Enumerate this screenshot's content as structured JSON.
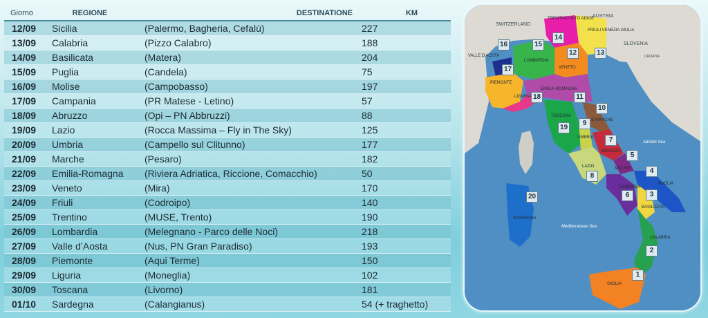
{
  "table": {
    "headers": {
      "day": "Giorno",
      "region": "REGIONE",
      "destination": "DESTINATIONE",
      "km": "KM"
    },
    "rows": [
      {
        "day": "12/09",
        "region": "Sicilia",
        "destination": "(Palermo, Bagheria, Cefalù)",
        "km": "227"
      },
      {
        "day": "13/09",
        "region": "Calabria",
        "destination": "(Pizzo Calabro)",
        "km": "188"
      },
      {
        "day": "14/09",
        "region": "Basilicata",
        "destination": "(Matera)",
        "km": "204"
      },
      {
        "day": "15/09",
        "region": "Puglia",
        "destination": "(Candela)",
        "km": "75"
      },
      {
        "day": "16/09",
        "region": "Molise",
        "destination": "(Campobasso)",
        "km": "197"
      },
      {
        "day": "17/09",
        "region": "Campania",
        "destination": "(PR Matese - Letino)",
        "km": "57"
      },
      {
        "day": "18/09",
        "region": "Abruzzo",
        "destination": "(Opi – PN Abbruzzi)",
        "km": "88"
      },
      {
        "day": "19/09",
        "region": "Lazio",
        "destination": "(Rocca Massima – Fly in The Sky)",
        "km": "125"
      },
      {
        "day": "20/09",
        "region": "Umbria",
        "destination": "(Campello sul Clitunno)",
        "km": "177"
      },
      {
        "day": "21/09",
        "region": "Marche",
        "destination": "(Pesaro)",
        "km": "182"
      },
      {
        "day": "22/09",
        "region": "Emilia-Romagna",
        "destination": "(Riviera Adriatica, Riccione, Comacchio)",
        "km": "50"
      },
      {
        "day": "23/09",
        "region": "Veneto",
        "destination": "(Mira)",
        "km": "170"
      },
      {
        "day": "24/09",
        "region": "Friuli",
        "destination": "(Codroipo)",
        "km": "140"
      },
      {
        "day": "25/09",
        "region": "Trentino",
        "destination": "(MUSE, Trento)",
        "km": "190"
      },
      {
        "day": "26/09",
        "region": "Lombardia",
        "destination": "(Melegnano - Parco delle Noci)",
        "km": "218"
      },
      {
        "day": "27/09",
        "region": "Valle d’Aosta",
        "destination": "(Nus, PN Gran Paradiso)",
        "km": "193"
      },
      {
        "day": "28/09",
        "region": "Piemonte",
        "destination": "(Aqui Terme)",
        "km": "150"
      },
      {
        "day": "29/09",
        "region": "Liguria",
        "destination": "(Moneglia)",
        "km": "102"
      },
      {
        "day": "30/09",
        "region": "Toscana",
        "destination": "(Livorno)",
        "km": "181"
      },
      {
        "day": "01/10",
        "region": "Sardegna",
        "destination": "(Calangianus)",
        "km": "54 (+ traghetto)"
      }
    ]
  },
  "map": {
    "countries": {
      "switzerland": "SWITZERLAND",
      "austria": "AUSTRIA",
      "slovenia": "SLOVENIA",
      "croatia": "CROATIA"
    },
    "seas": {
      "adriatic": "Adriatic Sea",
      "mediterranean": "Mediterranean Sea"
    },
    "regions": {
      "trentino": "TRENTINO ALTO ADIGE",
      "friuli": "FRIULI VENEZIA GIULIA",
      "valle": "VALLE D'AOSTA",
      "lombardia": "LOMBARDIA",
      "veneto": "VENETO",
      "piemonte": "PIEMONTE",
      "emilia": "EMILIA-ROMAGNA",
      "liguria": "LIGURIA",
      "toscana": "TOSCANA",
      "marche": "LE MARCHE",
      "umbria": "UMBRIA",
      "abruzzo": "ABRUZZO",
      "lazio": "LAZIO",
      "molise": "MOLISE",
      "puglia": "PUGLIA",
      "campania": "CAMPANIA",
      "basilicata": "BASILICATA",
      "sardegna": "SARDEGNA",
      "calabria": "CALABRIA",
      "sicilia": "SICILIA"
    },
    "stops": [
      "1",
      "2",
      "3",
      "4",
      "5",
      "6",
      "7",
      "8",
      "9",
      "10",
      "11",
      "12",
      "13",
      "14",
      "15",
      "16",
      "17",
      "18",
      "19",
      "20"
    ]
  }
}
